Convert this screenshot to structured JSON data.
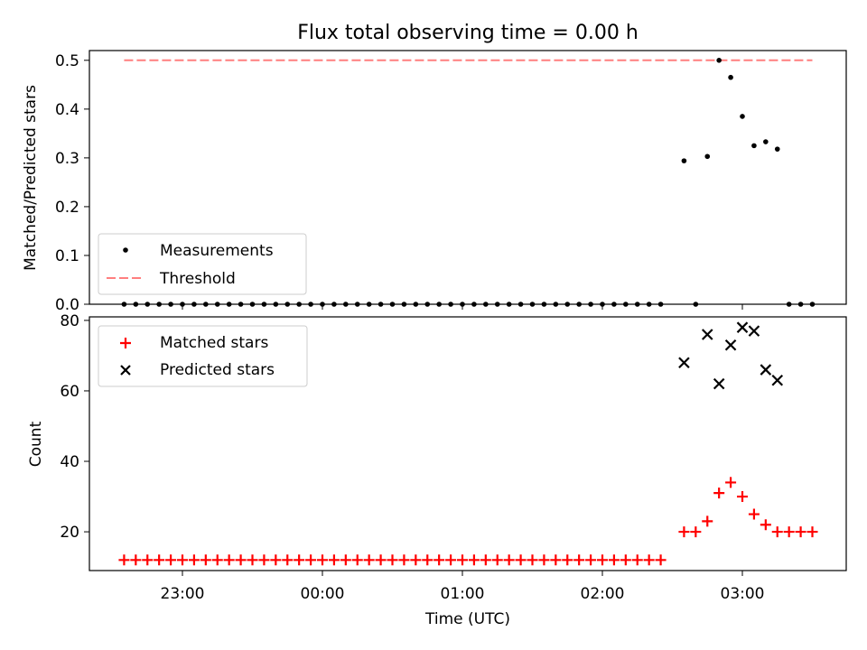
{
  "title": "Flux total observing time = 0.00 h",
  "colors": {
    "measure": "#000000",
    "threshold": "#ff7f7f",
    "matched": "#ff0000",
    "predicted": "#000000"
  },
  "chart_data": [
    {
      "type": "scatter",
      "ylabel": "Matched/Predicted stars",
      "ylim": [
        0,
        0.52
      ],
      "yticks": [
        "0.0",
        "0.1",
        "0.2",
        "0.3",
        "0.4",
        "0.5"
      ],
      "legend": {
        "position": "lower-left",
        "entries": [
          "Measurements",
          "Threshold"
        ]
      },
      "threshold": {
        "name": "Threshold",
        "value": 0.5,
        "x_range": [
          "22:35",
          "03:30"
        ],
        "style": "dashed"
      },
      "series": [
        {
          "name": "Measurements",
          "marker": "dot",
          "points": [
            [
              "22:35",
              0
            ],
            [
              "22:40",
              0
            ],
            [
              "22:45",
              0
            ],
            [
              "22:50",
              0
            ],
            [
              "22:55",
              0
            ],
            [
              "23:00",
              0
            ],
            [
              "23:05",
              0
            ],
            [
              "23:10",
              0
            ],
            [
              "23:15",
              0
            ],
            [
              "23:20",
              0
            ],
            [
              "23:25",
              0
            ],
            [
              "23:30",
              0
            ],
            [
              "23:35",
              0
            ],
            [
              "23:40",
              0
            ],
            [
              "23:45",
              0
            ],
            [
              "23:50",
              0
            ],
            [
              "23:55",
              0
            ],
            [
              "00:00",
              0
            ],
            [
              "00:05",
              0
            ],
            [
              "00:10",
              0
            ],
            [
              "00:15",
              0
            ],
            [
              "00:20",
              0
            ],
            [
              "00:25",
              0
            ],
            [
              "00:30",
              0
            ],
            [
              "00:35",
              0
            ],
            [
              "00:40",
              0
            ],
            [
              "00:45",
              0
            ],
            [
              "00:50",
              0
            ],
            [
              "00:55",
              0
            ],
            [
              "01:00",
              0
            ],
            [
              "01:05",
              0
            ],
            [
              "01:10",
              0
            ],
            [
              "01:15",
              0
            ],
            [
              "01:20",
              0
            ],
            [
              "01:25",
              0
            ],
            [
              "01:30",
              0
            ],
            [
              "01:35",
              0
            ],
            [
              "01:40",
              0
            ],
            [
              "01:45",
              0
            ],
            [
              "01:50",
              0
            ],
            [
              "01:55",
              0
            ],
            [
              "02:00",
              0
            ],
            [
              "02:05",
              0
            ],
            [
              "02:10",
              0
            ],
            [
              "02:15",
              0
            ],
            [
              "02:20",
              0
            ],
            [
              "02:25",
              0
            ],
            [
              "02:35",
              0.294
            ],
            [
              "02:40",
              0
            ],
            [
              "02:45",
              0.303
            ],
            [
              "02:50",
              0.5
            ],
            [
              "02:55",
              0.465
            ],
            [
              "03:00",
              0.385
            ],
            [
              "03:05",
              0.325
            ],
            [
              "03:10",
              0.333
            ],
            [
              "03:15",
              0.318
            ],
            [
              "03:20",
              0
            ],
            [
              "03:25",
              0
            ],
            [
              "03:30",
              0
            ]
          ]
        }
      ]
    },
    {
      "type": "scatter",
      "xlabel": "Time (UTC)",
      "ylabel": "Count",
      "ylim": [
        9,
        81
      ],
      "yticks": [
        "20",
        "40",
        "60",
        "80"
      ],
      "xticks": [
        "23:00",
        "00:00",
        "01:00",
        "02:00",
        "03:00"
      ],
      "legend": {
        "position": "upper-left",
        "entries": [
          "Matched stars",
          "Predicted stars"
        ]
      },
      "series": [
        {
          "name": "Matched stars",
          "marker": "plus",
          "points": [
            [
              "22:35",
              12
            ],
            [
              "22:40",
              12
            ],
            [
              "22:45",
              12
            ],
            [
              "22:50",
              12
            ],
            [
              "22:55",
              12
            ],
            [
              "23:00",
              12
            ],
            [
              "23:05",
              12
            ],
            [
              "23:10",
              12
            ],
            [
              "23:15",
              12
            ],
            [
              "23:20",
              12
            ],
            [
              "23:25",
              12
            ],
            [
              "23:30",
              12
            ],
            [
              "23:35",
              12
            ],
            [
              "23:40",
              12
            ],
            [
              "23:45",
              12
            ],
            [
              "23:50",
              12
            ],
            [
              "23:55",
              12
            ],
            [
              "00:00",
              12
            ],
            [
              "00:05",
              12
            ],
            [
              "00:10",
              12
            ],
            [
              "00:15",
              12
            ],
            [
              "00:20",
              12
            ],
            [
              "00:25",
              12
            ],
            [
              "00:30",
              12
            ],
            [
              "00:35",
              12
            ],
            [
              "00:40",
              12
            ],
            [
              "00:45",
              12
            ],
            [
              "00:50",
              12
            ],
            [
              "00:55",
              12
            ],
            [
              "01:00",
              12
            ],
            [
              "01:05",
              12
            ],
            [
              "01:10",
              12
            ],
            [
              "01:15",
              12
            ],
            [
              "01:20",
              12
            ],
            [
              "01:25",
              12
            ],
            [
              "01:30",
              12
            ],
            [
              "01:35",
              12
            ],
            [
              "01:40",
              12
            ],
            [
              "01:45",
              12
            ],
            [
              "01:50",
              12
            ],
            [
              "01:55",
              12
            ],
            [
              "02:00",
              12
            ],
            [
              "02:05",
              12
            ],
            [
              "02:10",
              12
            ],
            [
              "02:15",
              12
            ],
            [
              "02:20",
              12
            ],
            [
              "02:25",
              12
            ],
            [
              "02:35",
              20
            ],
            [
              "02:40",
              20
            ],
            [
              "02:45",
              23
            ],
            [
              "02:50",
              31
            ],
            [
              "02:55",
              34
            ],
            [
              "03:00",
              30
            ],
            [
              "03:05",
              25
            ],
            [
              "03:10",
              22
            ],
            [
              "03:15",
              20
            ],
            [
              "03:20",
              20
            ],
            [
              "03:25",
              20
            ],
            [
              "03:30",
              20
            ]
          ]
        },
        {
          "name": "Predicted stars",
          "marker": "x",
          "points": [
            [
              "02:35",
              68
            ],
            [
              "02:45",
              76
            ],
            [
              "02:50",
              62
            ],
            [
              "02:55",
              73
            ],
            [
              "03:00",
              78
            ],
            [
              "03:05",
              77
            ],
            [
              "03:10",
              66
            ],
            [
              "03:15",
              63
            ]
          ]
        }
      ]
    }
  ]
}
